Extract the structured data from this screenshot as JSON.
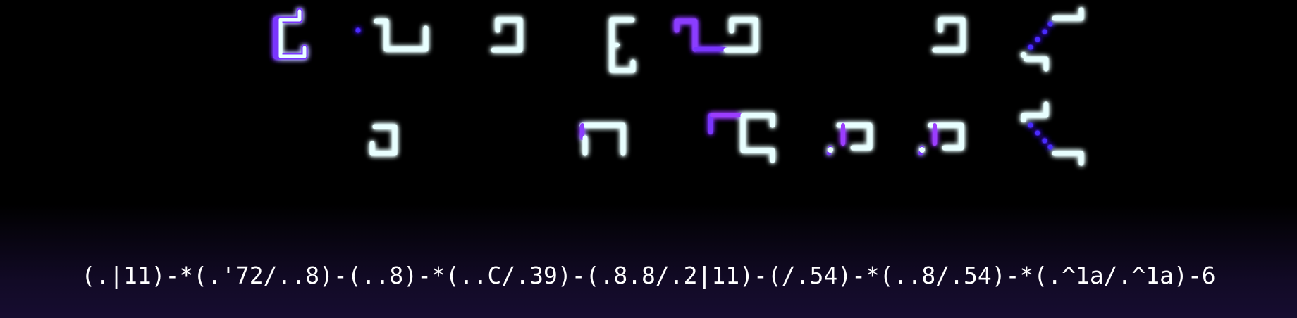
{
  "code_line": "(.|11)-*(.'72/..8)-(..8)-*(..C/.39)-(.8.8/.2|11)-(/.54)-*(..8/.54)-*(.^1a/.^1a)-6",
  "colors": {
    "background": "#000000",
    "background_bottom": "#160d30",
    "glyph_core": "#ffffff",
    "glyph_glow": "#00e5ff",
    "glyph_tail": "#5a2cff",
    "glyph_accent": "#9b3dff",
    "text": "#ffffff"
  },
  "rows": [
    {
      "name": "top",
      "glyphs": [
        "bracket-glyph",
        "hook-glyph",
        "loop-glyph",
        "bracket-glyph",
        "double-loop-glyph",
        "loop-glyph",
        "chevron-glyph"
      ]
    },
    {
      "name": "bottom",
      "glyphs": [
        "loop-glyph",
        "gate-glyph",
        "corner-glyph",
        "fork-glyph",
        "fork-glyph",
        "chevron-glyph"
      ]
    }
  ]
}
